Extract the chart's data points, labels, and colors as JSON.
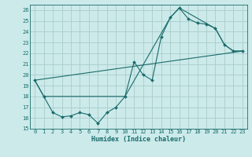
{
  "title": "",
  "xlabel": "Humidex (Indice chaleur)",
  "ylabel": "",
  "background_color": "#cceaea",
  "grid_color": "#aacccc",
  "line_color": "#1a6b6b",
  "xlim": [
    -0.5,
    23.5
  ],
  "ylim": [
    15,
    26.5
  ],
  "yticks": [
    15,
    16,
    17,
    18,
    19,
    20,
    21,
    22,
    23,
    24,
    25,
    26
  ],
  "xticks": [
    0,
    1,
    2,
    3,
    4,
    5,
    6,
    7,
    8,
    9,
    10,
    11,
    12,
    13,
    14,
    15,
    16,
    17,
    18,
    19,
    20,
    21,
    22,
    23
  ],
  "series1_x": [
    0,
    1,
    2,
    3,
    4,
    5,
    6,
    7,
    8,
    9,
    10,
    11,
    12,
    13,
    14,
    15,
    16,
    17,
    18,
    19,
    20,
    21,
    22,
    23
  ],
  "series1_y": [
    19.5,
    18.0,
    16.5,
    16.1,
    16.2,
    16.5,
    16.3,
    15.5,
    16.5,
    17.0,
    18.0,
    21.2,
    20.0,
    19.5,
    23.5,
    25.3,
    26.2,
    25.2,
    24.8,
    24.7,
    24.3,
    22.8,
    22.2,
    22.2
  ],
  "series2_x": [
    0,
    1,
    10,
    15,
    16,
    20,
    21,
    22,
    23
  ],
  "series2_y": [
    19.5,
    18.0,
    18.0,
    25.3,
    26.2,
    24.3,
    22.8,
    22.2,
    22.2
  ],
  "series3_x": [
    0,
    23
  ],
  "series3_y": [
    19.5,
    22.2
  ],
  "xlabel_fontsize": 6,
  "tick_fontsize": 5
}
